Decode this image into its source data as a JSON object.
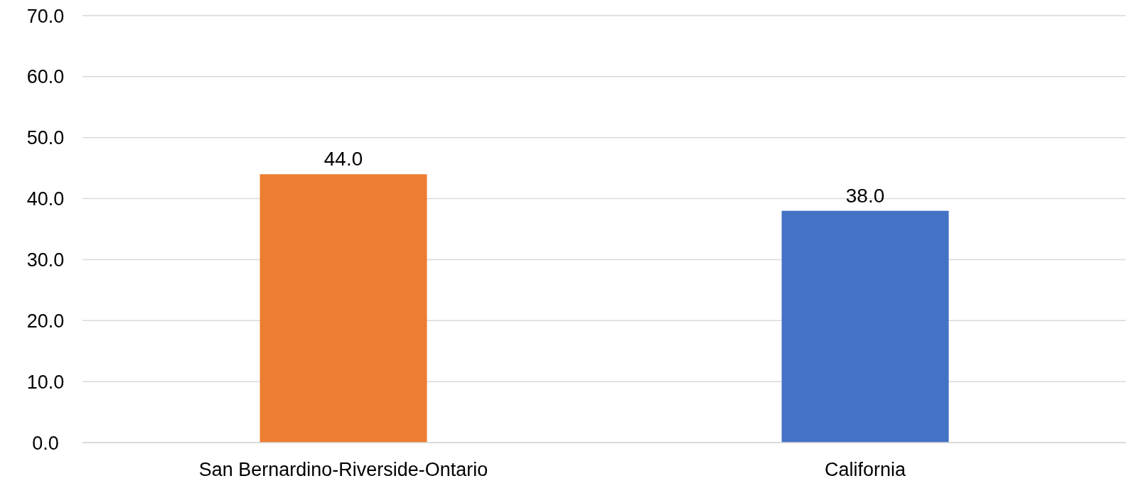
{
  "chart_data": {
    "type": "bar",
    "categories": [
      "San Bernardino-Riverside-Ontario",
      "California"
    ],
    "values": [
      44.0,
      38.0
    ],
    "colors": [
      "#ed7d31",
      "#4472c4"
    ],
    "ylim": [
      0,
      70
    ],
    "yticks": [
      {
        "value": 0,
        "label": "0.0"
      },
      {
        "value": 10,
        "label": "10.0"
      },
      {
        "value": 20,
        "label": "20.0"
      },
      {
        "value": 30,
        "label": "30.0"
      },
      {
        "value": 40,
        "label": "40.0"
      },
      {
        "value": 50,
        "label": "50.0"
      },
      {
        "value": 60,
        "label": "60.0"
      },
      {
        "value": 70,
        "label": "70.0"
      }
    ],
    "value_labels": [
      "44.0",
      "38.0"
    ],
    "grid": "y"
  }
}
